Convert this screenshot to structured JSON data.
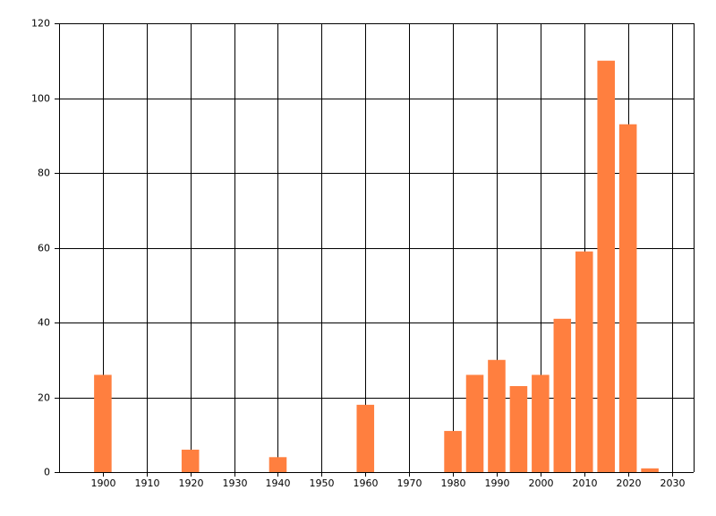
{
  "chart_data": {
    "type": "bar",
    "x": [
      1900,
      1920,
      1940,
      1960,
      1980,
      1985,
      1990,
      1995,
      2000,
      2005,
      2010,
      2015,
      2020,
      2025
    ],
    "values": [
      26,
      6,
      4,
      18,
      11,
      26,
      30,
      23,
      26,
      41,
      59,
      110,
      93,
      1
    ],
    "color": "#ff7f3f",
    "xlim": [
      1890,
      2035
    ],
    "xticks": [
      1900,
      1910,
      1920,
      1930,
      1940,
      1950,
      1960,
      1970,
      1980,
      1990,
      2000,
      2010,
      2020,
      2030
    ],
    "ylim": [
      0,
      120
    ],
    "yticks": [
      0,
      20,
      40,
      60,
      80,
      100,
      120
    ],
    "grid": true
  }
}
